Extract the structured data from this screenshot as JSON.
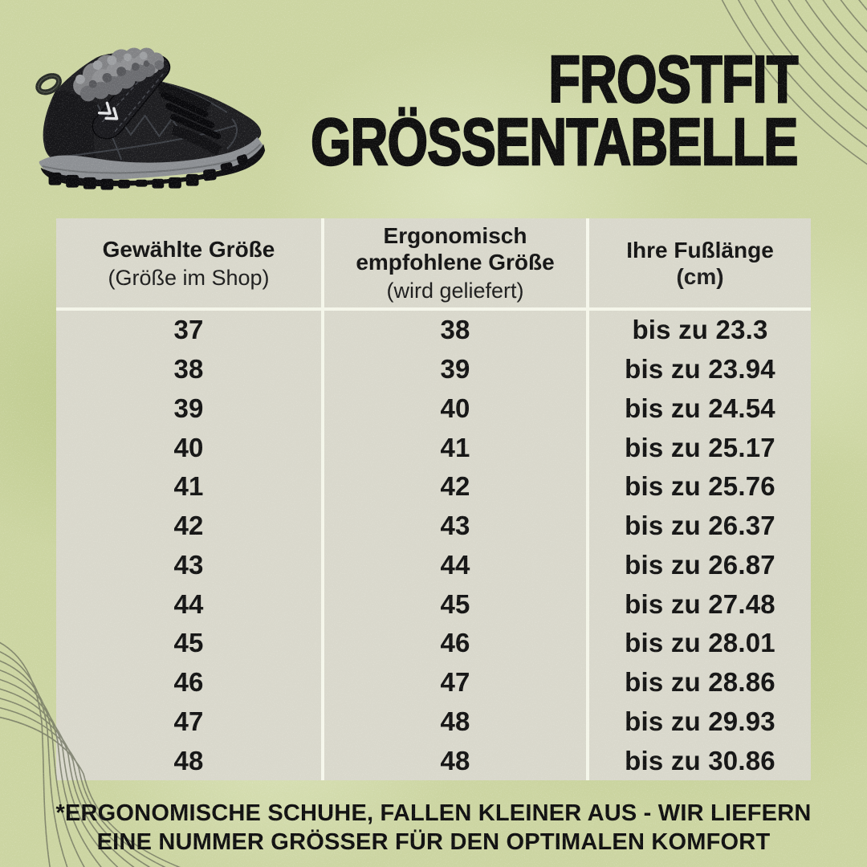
{
  "header": {
    "title_line1": "FROSTFIT",
    "title_line2": "GRÖSSENTABELLE"
  },
  "product_image": {
    "icon": "winter-boot-image"
  },
  "table": {
    "columns": [
      {
        "main": "Gewählte Größe",
        "sub": "(Größe im Shop)"
      },
      {
        "main": "Ergonomisch empfohlene Größe",
        "sub": "(wird geliefert)"
      },
      {
        "main": "Ihre Fußlänge",
        "sub": "(cm)"
      }
    ],
    "rows": [
      {
        "selected": "37",
        "recommended": "38",
        "foot": "bis zu 23.3"
      },
      {
        "selected": "38",
        "recommended": "39",
        "foot": "bis zu 23.94"
      },
      {
        "selected": "39",
        "recommended": "40",
        "foot": "bis zu 24.54"
      },
      {
        "selected": "40",
        "recommended": "41",
        "foot": "bis zu 25.17"
      },
      {
        "selected": "41",
        "recommended": "42",
        "foot": "bis zu 25.76"
      },
      {
        "selected": "42",
        "recommended": "43",
        "foot": "bis zu 26.37"
      },
      {
        "selected": "43",
        "recommended": "44",
        "foot": "bis zu 26.87"
      },
      {
        "selected": "44",
        "recommended": "45",
        "foot": "bis zu 27.48"
      },
      {
        "selected": "45",
        "recommended": "46",
        "foot": "bis zu 28.01"
      },
      {
        "selected": "46",
        "recommended": "47",
        "foot": "bis zu 28.86"
      },
      {
        "selected": "47",
        "recommended": "48",
        "foot": "bis zu 29.93"
      },
      {
        "selected": "48",
        "recommended": "48",
        "foot": "bis zu 30.86"
      }
    ]
  },
  "footer": {
    "note_line1": "*ERGONOMISCHE SCHUHE, FALLEN KLEINER AUS - WIR LIEFERN",
    "note_line2": "EINE NUMMER GRÖSSER FÜR DEN OPTIMALEN KOMFORT"
  },
  "style": {
    "background_color": "#ccd5a2",
    "table_background_color": "#d9d8cc",
    "grid_line_color": "#fcfcf7",
    "text_color": "#141414",
    "decor_line_color": "#6a6e5b"
  }
}
